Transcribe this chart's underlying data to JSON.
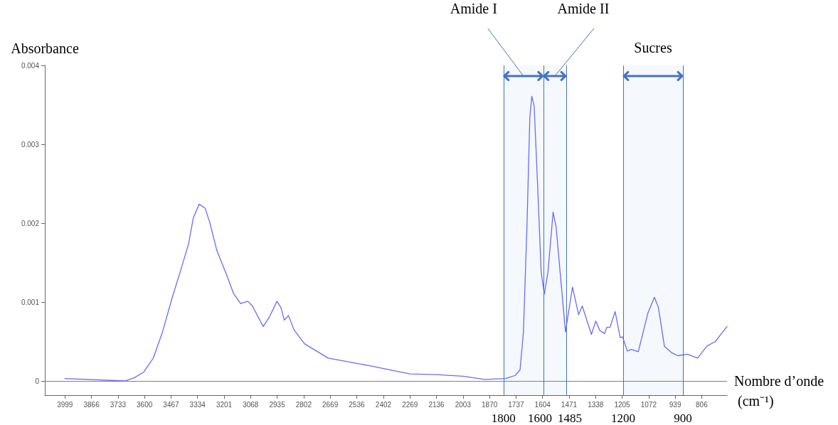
{
  "chart_data": {
    "type": "line",
    "xlabel": "Nombre d’onde (cm⁻¹)",
    "ylabel": "Absorbance",
    "xlim": [
      4100,
      679
    ],
    "ylim": [
      -0.00018,
      0.004
    ],
    "xticks": [
      3999,
      3866,
      3733,
      3600,
      3467,
      3334,
      3201,
      3068,
      2935,
      2802,
      2669,
      2536,
      2402,
      2269,
      2136,
      2003,
      1870,
      1737,
      1604,
      1471,
      1338,
      1205,
      1072,
      939,
      806
    ],
    "yticks": [
      0,
      0.001,
      0.002,
      0.003,
      0.004
    ],
    "marker": "none",
    "grid": false,
    "series": [
      {
        "color": "#6b6bf5",
        "x": [
          3999,
          3699,
          3652,
          3605,
          3556,
          3510,
          3462,
          3414,
          3379,
          3355,
          3326,
          3296,
          3273,
          3237,
          3189,
          3154,
          3118,
          3082,
          3059,
          3005,
          2976,
          2936,
          2916,
          2899,
          2878,
          2851,
          2797,
          2679,
          2466,
          2269,
          2136,
          2003,
          1895,
          1789,
          1741,
          1717,
          1700,
          1682,
          1668,
          1658,
          1646,
          1628,
          1611,
          1595,
          1577,
          1551,
          1536,
          1516,
          1489,
          1454,
          1423,
          1405,
          1359,
          1337,
          1317,
          1293,
          1282,
          1266,
          1240,
          1215,
          1203,
          1179,
          1159,
          1124,
          1076,
          1043,
          1023,
          993,
          958,
          925,
          877,
          827,
          780,
          738,
          679
        ],
        "values": [
          3e-05,
          0.0,
          4e-05,
          0.00011,
          0.00029,
          0.00062,
          0.00105,
          0.00144,
          0.00174,
          0.00207,
          0.00224,
          0.00219,
          0.00201,
          0.00165,
          0.00135,
          0.00111,
          0.00098,
          0.00101,
          0.00095,
          0.00069,
          0.0008,
          0.00101,
          0.00093,
          0.00077,
          0.00083,
          0.00065,
          0.00047,
          0.00029,
          0.00019,
          9e-05,
          8e-05,
          6e-05,
          2e-05,
          3e-05,
          7e-05,
          0.00014,
          0.00062,
          0.00198,
          0.00333,
          0.00361,
          0.00348,
          0.00243,
          0.00138,
          0.0011,
          0.00138,
          0.00214,
          0.00195,
          0.00138,
          0.00062,
          0.00119,
          0.00084,
          0.00095,
          0.00059,
          0.00076,
          0.00064,
          0.0006,
          0.00068,
          0.00068,
          0.00088,
          0.00055,
          0.00056,
          0.00038,
          0.0004,
          0.00037,
          0.00086,
          0.00106,
          0.00093,
          0.00044,
          0.00036,
          0.00032,
          0.00034,
          0.00029,
          0.00044,
          0.0005,
          0.00069
        ]
      }
    ],
    "ref_lines": [
      {
        "axis": "y",
        "value": 0,
        "label": null,
        "color": "#808080"
      },
      {
        "axis": "x",
        "value": 1800,
        "label": "1800",
        "color": "#4472c4"
      },
      {
        "axis": "x",
        "value": 1600,
        "label": "1600",
        "color": "#4472c4"
      },
      {
        "axis": "x",
        "value": 1485,
        "label": "1485",
        "color": "#4472c4"
      },
      {
        "axis": "x",
        "value": 1200,
        "label": "1200",
        "color": "#4472c4"
      },
      {
        "axis": "x",
        "value": 900,
        "label": "900",
        "color": "#4472c4"
      }
    ],
    "bands": [
      {
        "axis": "x",
        "from": 1800,
        "to": 1600,
        "label": "Amide I",
        "color": "#4472c4"
      },
      {
        "axis": "x",
        "from": 1600,
        "to": 1485,
        "label": "Amide II",
        "color": "#4472c4"
      },
      {
        "axis": "x",
        "from": 1200,
        "to": 900,
        "label": "Sucres",
        "color": "#4472c4"
      }
    ]
  }
}
